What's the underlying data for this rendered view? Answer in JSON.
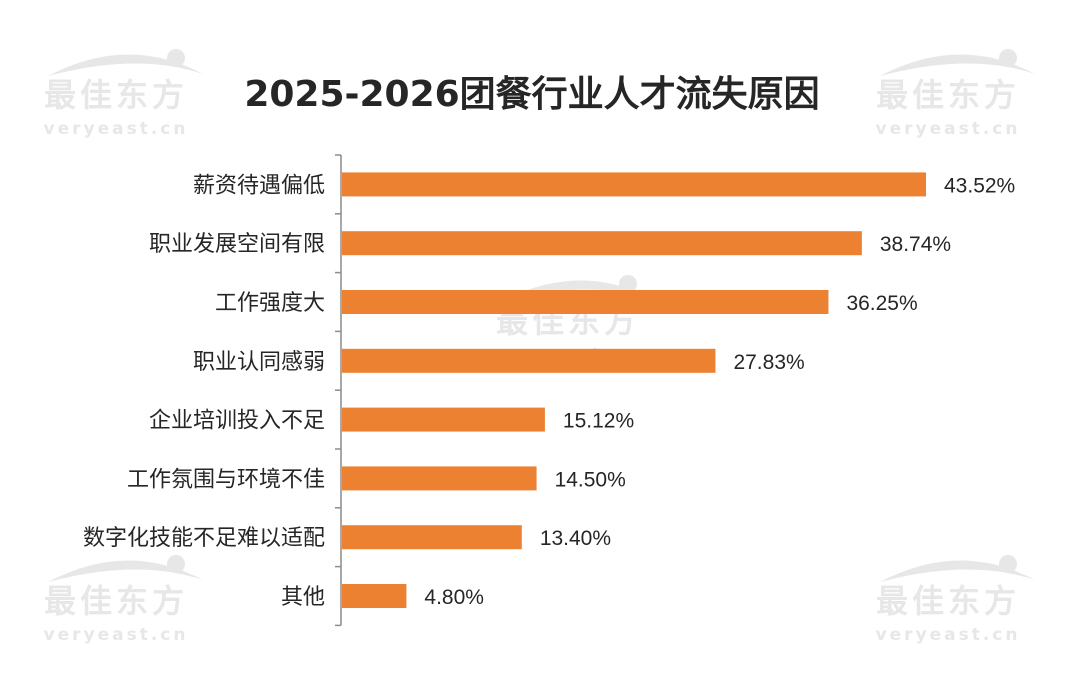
{
  "watermark": {
    "brand": "最佳东方",
    "site": "veryeast.cn"
  },
  "colors": {
    "bar": "#ED8132",
    "text": "#262626",
    "axis": "#8C8C8C",
    "watermark": "#E3E3E3"
  },
  "chart_data": {
    "type": "bar",
    "orientation": "horizontal",
    "title": "2025-2026团餐行业人才流失原因",
    "categories": [
      "薪资待遇偏低",
      "职业发展空间有限",
      "工作强度大",
      "职业认同感弱",
      "企业培训投入不足",
      "工作氛围与环境不佳",
      "数字化技能不足难以适配",
      "其他"
    ],
    "values": [
      43.52,
      38.74,
      36.25,
      27.83,
      15.12,
      14.5,
      13.4,
      4.8
    ],
    "value_labels": [
      "43.52%",
      "38.74%",
      "36.25%",
      "27.83%",
      "15.12%",
      "14.50%",
      "13.40%",
      "4.80%"
    ],
    "unit": "%",
    "xlim": [
      0,
      43.52
    ],
    "grid": false,
    "legend": "none"
  }
}
